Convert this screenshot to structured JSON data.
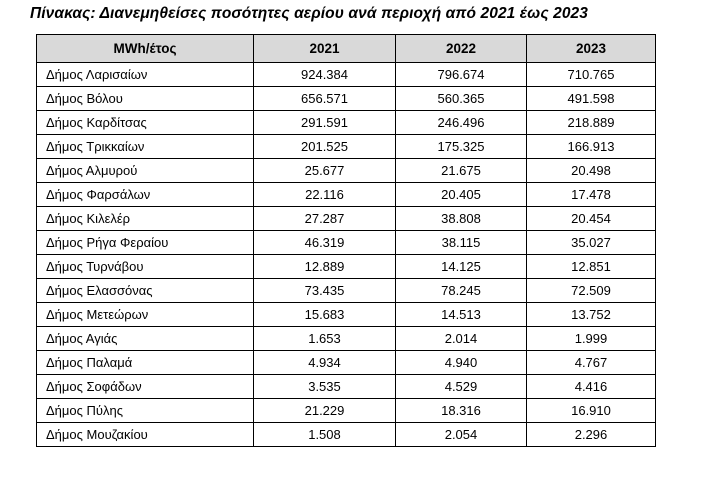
{
  "title": "Πίνακας: Διανεμηθείσες ποσότητες αερίου ανά περιοχή από 2021 έως 2023",
  "table": {
    "header": [
      "MWh/έτος",
      "2021",
      "2022",
      "2023"
    ],
    "header_bg": "#d9d9d9",
    "border_color": "#000000",
    "rows": [
      {
        "region": "Δήμος Λαρισαίων",
        "values": [
          "924.384",
          "796.674",
          "710.765"
        ]
      },
      {
        "region": "Δήμος Βόλου",
        "values": [
          "656.571",
          "560.365",
          "491.598"
        ]
      },
      {
        "region": "Δήμος Καρδίτσας",
        "values": [
          "291.591",
          "246.496",
          "218.889"
        ]
      },
      {
        "region": "Δήμος Τρικκαίων",
        "values": [
          "201.525",
          "175.325",
          "166.913"
        ]
      },
      {
        "region": "Δήμος Αλμυρού",
        "values": [
          "25.677",
          "21.675",
          "20.498"
        ]
      },
      {
        "region": "Δήμος Φαρσάλων",
        "values": [
          "22.116",
          "20.405",
          "17.478"
        ]
      },
      {
        "region": "Δήμος Κιλελέρ",
        "values": [
          "27.287",
          "38.808",
          "20.454"
        ]
      },
      {
        "region": "Δήμος Ρήγα Φεραίου",
        "values": [
          "46.319",
          "38.115",
          "35.027"
        ]
      },
      {
        "region": "Δήμος Τυρνάβου",
        "values": [
          "12.889",
          "14.125",
          "12.851"
        ]
      },
      {
        "region": "Δήμος Ελασσόνας",
        "values": [
          "73.435",
          "78.245",
          "72.509"
        ]
      },
      {
        "region": "Δήμος Μετεώρων",
        "values": [
          "15.683",
          "14.513",
          "13.752"
        ]
      },
      {
        "region": "Δήμος Αγιάς",
        "values": [
          "1.653",
          "2.014",
          "1.999"
        ]
      },
      {
        "region": "Δήμος Παλαμά",
        "values": [
          "4.934",
          "4.940",
          "4.767"
        ]
      },
      {
        "region": "Δήμος Σοφάδων",
        "values": [
          "3.535",
          "4.529",
          "4.416"
        ]
      },
      {
        "region": "Δήμος Πύλης",
        "values": [
          "21.229",
          "18.316",
          "16.910"
        ]
      },
      {
        "region": "Δήμος Μουζακίου",
        "values": [
          "1.508",
          "2.054",
          "2.296"
        ]
      }
    ]
  }
}
